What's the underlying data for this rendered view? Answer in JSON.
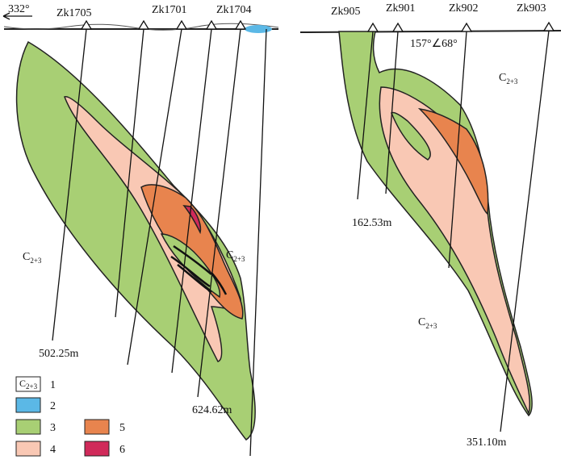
{
  "section_left": {
    "azimuth": "332°",
    "boreholes": [
      "Zk1705",
      "Zk1701",
      "Zk1704"
    ],
    "depth_labels": [
      "502.25m",
      "624.62m"
    ],
    "formation_labels": [
      {
        "symbol": "C",
        "subscript": "2+3"
      },
      {
        "symbol": "C",
        "subscript": "2+3"
      }
    ]
  },
  "section_right": {
    "attitude": "157°∠68°",
    "boreholes": [
      "Zk905",
      "Zk901",
      "Zk902",
      "Zk903"
    ],
    "depth_labels": [
      "162.53m",
      "351.10m"
    ],
    "formation_labels": [
      {
        "symbol": "C",
        "subscript": "2+3"
      },
      {
        "symbol": "C",
        "subscript": "2+3"
      }
    ]
  },
  "legend": {
    "items": [
      {
        "symbol": "C",
        "subscript": "2+3",
        "number": "1"
      },
      {
        "number": "2"
      },
      {
        "number": "3"
      },
      {
        "number": "4"
      },
      {
        "number": "5"
      },
      {
        "number": "6"
      }
    ]
  }
}
